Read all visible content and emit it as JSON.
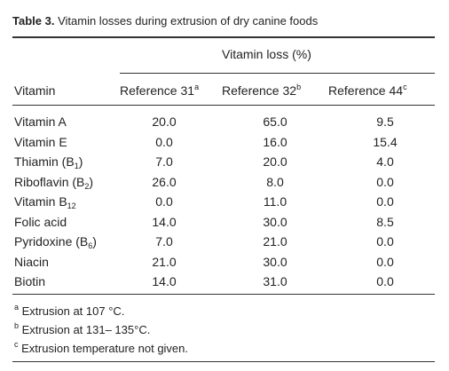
{
  "caption": {
    "label": "Table 3.",
    "text": "Vitamin losses during extrusion of dry canine foods"
  },
  "table": {
    "group_header": "Vitamin loss (%)",
    "columns": [
      {
        "base": "Vitamin"
      },
      {
        "base": "Reference 31",
        "sup": "a"
      },
      {
        "base": "Reference 32",
        "sup": "b"
      },
      {
        "base": "Reference  44",
        "sup": "c"
      }
    ],
    "rows": [
      [
        {
          "base": "Vitamin A"
        },
        "20.0",
        "65.0",
        "9.5"
      ],
      [
        {
          "base": "Vitamin E"
        },
        "0.0",
        "16.0",
        "15.4"
      ],
      [
        {
          "base": "Thiamin (B",
          "sub": "1",
          "end": ")"
        },
        "7.0",
        "20.0",
        "4.0"
      ],
      [
        {
          "base": "Riboflavin (B",
          "sub": "2",
          "end": ")"
        },
        "26.0",
        "8.0",
        "0.0"
      ],
      [
        {
          "base": "Vitamin B",
          "sub": "12"
        },
        "0.0",
        "11.0",
        "0.0"
      ],
      [
        {
          "base": "Folic acid"
        },
        "14.0",
        "30.0",
        "8.5"
      ],
      [
        {
          "base": "Pyridoxine (B",
          "sub": "6",
          "end": ")"
        },
        "7.0",
        "21.0",
        "0.0"
      ],
      [
        {
          "base": "Niacin"
        },
        "21.0",
        "30.0",
        "0.0"
      ],
      [
        {
          "base": "Biotin"
        },
        "14.0",
        "31.0",
        "0.0"
      ]
    ]
  },
  "footnotes": [
    {
      "sup": "a",
      "text": "Extrusion at 107 °C."
    },
    {
      "sup": "b",
      "text": "Extrusion at 131– 135°C."
    },
    {
      "sup": "c",
      "text": "Extrusion temperature not given."
    }
  ]
}
